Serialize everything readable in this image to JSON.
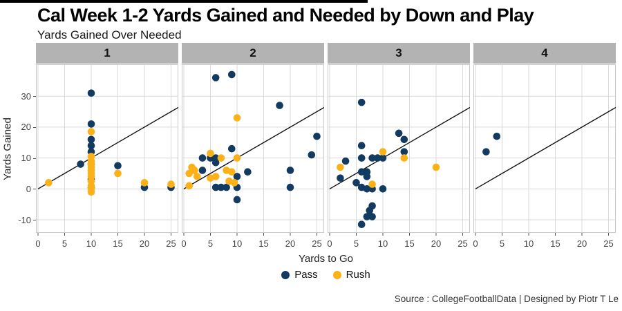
{
  "title": "Cal Week 1-2 Yards Gained and Needed by Down and Play",
  "subtitle": "Yards Gained Over Needed",
  "caption": "Source : CollegeFootballData | Designed by Piotr T Le",
  "chart_data": {
    "type": "scatter",
    "xlabel": "Yards to Go",
    "ylabel": "Yards Gained",
    "x_ticks": [
      0,
      5,
      10,
      15,
      20,
      25
    ],
    "y_ticks": [
      -10,
      0,
      10,
      20,
      30
    ],
    "xlim": [
      -0.4,
      26.4
    ],
    "ylim": [
      -14,
      40
    ],
    "grid": true,
    "abline": "y = x",
    "legend_position": "bottom",
    "legend": [
      {
        "label": "Pass",
        "color": "#133A61"
      },
      {
        "label": "Rush",
        "color": "#FBB117"
      }
    ],
    "facet_variable": "Down",
    "facets": [
      {
        "label": "1",
        "series": [
          {
            "name": "Pass",
            "points": [
              [
                10,
                31
              ],
              [
                10,
                21
              ],
              [
                10,
                16
              ],
              [
                10,
                14
              ],
              [
                10,
                12
              ],
              [
                8,
                8
              ],
              [
                10,
                8
              ],
              [
                15,
                7.5
              ],
              [
                10,
                3
              ],
              [
                10,
                0.5
              ],
              [
                20,
                0.5
              ],
              [
                25,
                0.5
              ]
            ]
          },
          {
            "name": "Rush",
            "points": [
              [
                2,
                2
              ],
              [
                10,
                18.5
              ],
              [
                10,
                10.5
              ],
              [
                10,
                9
              ],
              [
                10,
                8
              ],
              [
                10,
                7
              ],
              [
                10,
                6
              ],
              [
                10,
                5
              ],
              [
                10,
                4
              ],
              [
                10,
                2.5
              ],
              [
                10,
                1
              ],
              [
                10,
                0
              ],
              [
                10,
                -1
              ],
              [
                15,
                5
              ],
              [
                20,
                2
              ],
              [
                25,
                1.5
              ]
            ]
          }
        ]
      },
      {
        "label": "2",
        "series": [
          {
            "name": "Pass",
            "points": [
              [
                6,
                36
              ],
              [
                9,
                37
              ],
              [
                18,
                27
              ],
              [
                25,
                17
              ],
              [
                24,
                11
              ],
              [
                9,
                13
              ],
              [
                3.5,
                10
              ],
              [
                5,
                10
              ],
              [
                6,
                10
              ],
              [
                6,
                8.5
              ],
              [
                3.5,
                6
              ],
              [
                12,
                5.5
              ],
              [
                10,
                4
              ],
              [
                20,
                6
              ],
              [
                6,
                0.5
              ],
              [
                7,
                0.5
              ],
              [
                8,
                0.5
              ],
              [
                10,
                0.5
              ],
              [
                20,
                0.5
              ],
              [
                10,
                -3.5
              ]
            ]
          },
          {
            "name": "Rush",
            "points": [
              [
                10,
                23
              ],
              [
                5,
                11.5
              ],
              [
                7,
                10
              ],
              [
                10,
                10
              ],
              [
                1.5,
                7
              ],
              [
                2,
                6
              ],
              [
                1,
                5
              ],
              [
                2.5,
                4
              ],
              [
                5,
                3.5
              ],
              [
                6,
                4
              ],
              [
                8,
                6
              ],
              [
                8.5,
                2.5
              ],
              [
                9.5,
                2
              ],
              [
                9,
                5.5
              ],
              [
                1,
                1
              ]
            ]
          }
        ]
      },
      {
        "label": "3",
        "series": [
          {
            "name": "Pass",
            "points": [
              [
                6,
                28
              ],
              [
                13,
                18
              ],
              [
                14,
                16
              ],
              [
                6,
                14
              ],
              [
                14,
                12
              ],
              [
                6,
                10
              ],
              [
                8,
                10
              ],
              [
                9,
                10
              ],
              [
                10,
                10
              ],
              [
                3,
                9
              ],
              [
                2,
                3.5
              ],
              [
                5,
                2
              ],
              [
                6,
                5.5
              ],
              [
                7,
                5.5
              ],
              [
                7,
                4
              ],
              [
                6,
                0.5
              ],
              [
                7,
                0
              ],
              [
                8,
                0
              ],
              [
                10,
                0
              ],
              [
                8,
                -5.5
              ],
              [
                7.5,
                -7
              ],
              [
                7,
                -9
              ],
              [
                8,
                -9
              ],
              [
                6,
                -11.5
              ]
            ]
          },
          {
            "name": "Rush",
            "points": [
              [
                10,
                12
              ],
              [
                14,
                10
              ],
              [
                2,
                7
              ],
              [
                20,
                7
              ],
              [
                8,
                1.5
              ]
            ]
          }
        ]
      },
      {
        "label": "4",
        "series": [
          {
            "name": "Pass",
            "points": [
              [
                4,
                17
              ],
              [
                2,
                12
              ]
            ]
          },
          {
            "name": "Rush",
            "points": []
          }
        ]
      }
    ]
  }
}
